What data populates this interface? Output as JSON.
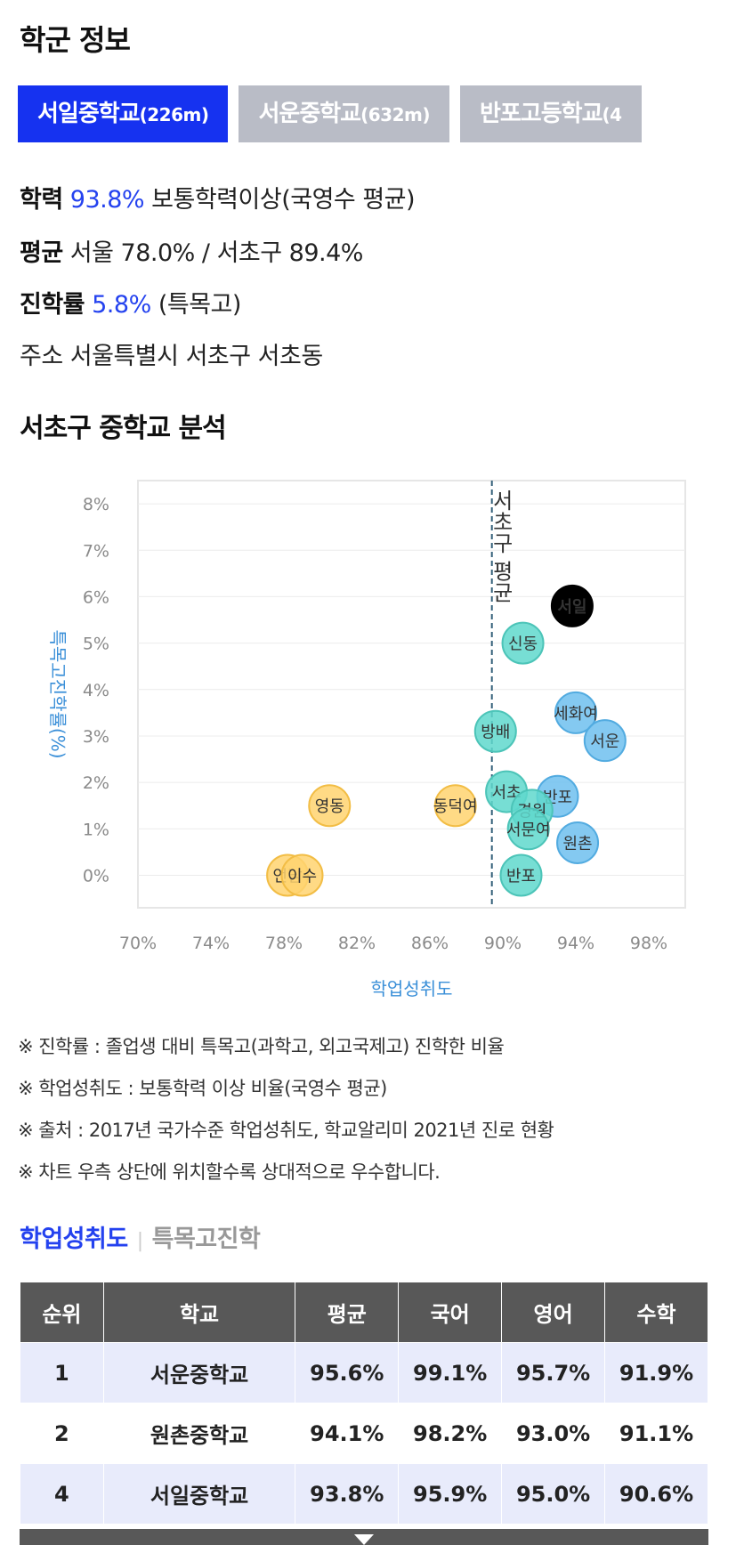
{
  "section1_title": "학군 정보",
  "tabs": [
    {
      "name": "서일중학교",
      "distance": "(226m)"
    },
    {
      "name": "서운중학교",
      "distance": "(632m)"
    },
    {
      "name": "반포고등학교",
      "distance": "(4"
    }
  ],
  "info": {
    "achievement_label": "학력",
    "achievement_value": "93.8%",
    "achievement_suffix": "보통학력이상(국영수 평균)",
    "avg_label": "평균",
    "avg_value": "서울 78.0% / 서초구 89.4%",
    "advance_label": "진학률",
    "advance_value": "5.8%",
    "advance_suffix": "(특목고)",
    "address_label": "주소",
    "address_value": "서울특별시 서초구 서초동"
  },
  "section2_title": "서초구 중학교 분석",
  "chart_data": {
    "type": "scatter",
    "xlabel": "학업성취도",
    "ylabel": "특목고진학률(%)",
    "xlim": [
      70,
      100
    ],
    "ylim": [
      -0.7,
      8.5
    ],
    "x_ticks": [
      "70%",
      "74%",
      "78%",
      "82%",
      "86%",
      "90%",
      "94%",
      "98%"
    ],
    "y_ticks": [
      "0%",
      "1%",
      "2%",
      "3%",
      "4%",
      "5%",
      "6%",
      "7%",
      "8%"
    ],
    "reference_line": {
      "x": 89.4,
      "label": "서초구 평균"
    },
    "colors": {
      "highlight": "#000000",
      "teal": "#5fd8cc",
      "blue": "#6ec0ef",
      "yellow": "#ffd470"
    },
    "points": [
      {
        "label": "서일",
        "x": 93.8,
        "y": 5.8,
        "group": "highlight"
      },
      {
        "label": "신동",
        "x": 91.1,
        "y": 5.0,
        "group": "teal"
      },
      {
        "label": "세화여",
        "x": 94.0,
        "y": 3.5,
        "group": "blue"
      },
      {
        "label": "서운",
        "x": 95.6,
        "y": 2.9,
        "group": "blue"
      },
      {
        "label": "방배",
        "x": 89.6,
        "y": 3.1,
        "group": "teal"
      },
      {
        "label": "반포",
        "x": 93.0,
        "y": 1.7,
        "group": "blue"
      },
      {
        "label": "서초",
        "x": 90.2,
        "y": 1.8,
        "group": "teal"
      },
      {
        "label": "경원",
        "x": 91.6,
        "y": 1.4,
        "group": "teal"
      },
      {
        "label": "서문여",
        "x": 91.4,
        "y": 1.0,
        "group": "teal"
      },
      {
        "label": "원촌",
        "x": 94.1,
        "y": 0.7,
        "group": "blue"
      },
      {
        "label": "반포",
        "x": 91.0,
        "y": 0.0,
        "group": "teal"
      },
      {
        "label": "영동",
        "x": 80.5,
        "y": 1.5,
        "group": "yellow"
      },
      {
        "label": "동덕여",
        "x": 87.4,
        "y": 1.5,
        "group": "yellow"
      },
      {
        "label": "언남",
        "x": 78.2,
        "y": 0.0,
        "group": "yellow"
      },
      {
        "label": "이수",
        "x": 79.0,
        "y": 0.0,
        "group": "yellow"
      }
    ]
  },
  "notes": [
    "※ 진학률 : 졸업생 대비 특목고(과학고, 외고국제고) 진학한 비율",
    "※ 학업성취도 : 보통학력 이상 비율(국영수 평균)",
    "※ 출처 : 2017년 국가수준 학업성취도, 학교알리미 2021년 진로 현황",
    "※ 차트 우측 상단에 위치할수록 상대적으로 우수합니다."
  ],
  "subtabs": {
    "active": "학업성취도",
    "inactive": "특목고진학"
  },
  "table": {
    "headers": [
      "순위",
      "학교",
      "평균",
      "국어",
      "영어",
      "수학"
    ],
    "rows": [
      [
        "1",
        "서운중학교",
        "95.6%",
        "99.1%",
        "95.7%",
        "91.9%"
      ],
      [
        "2",
        "원촌중학교",
        "94.1%",
        "98.2%",
        "93.0%",
        "91.1%"
      ],
      [
        "4",
        "서일중학교",
        "93.8%",
        "95.9%",
        "95.0%",
        "90.6%"
      ]
    ]
  }
}
